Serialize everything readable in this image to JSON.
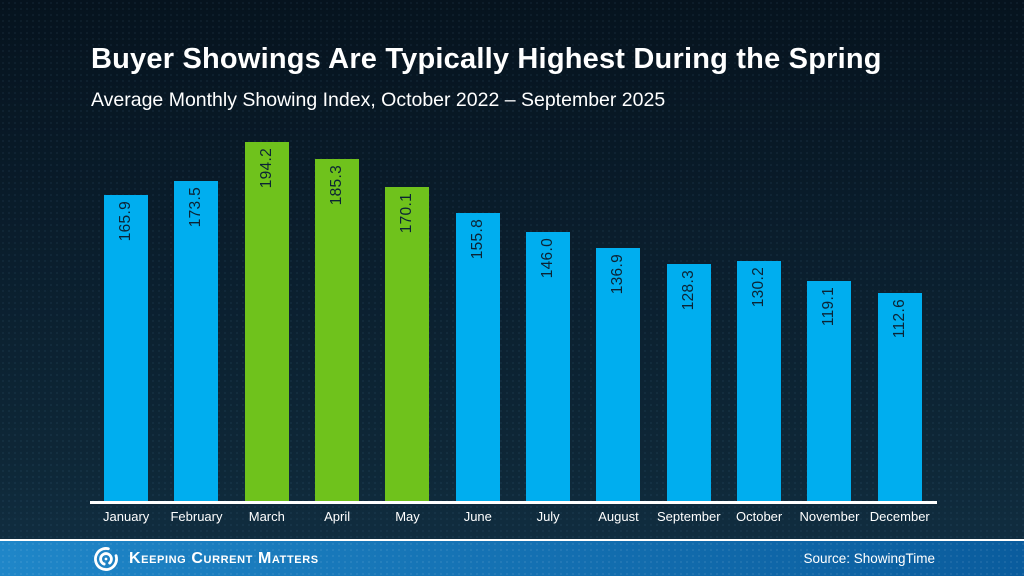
{
  "chart_data": {
    "type": "bar",
    "title": "Buyer Showings Are Typically Highest During the Spring",
    "subtitle": "Average Monthly Showing Index, October 2022 – September 2025",
    "categories": [
      "January",
      "February",
      "March",
      "April",
      "May",
      "June",
      "July",
      "August",
      "September",
      "October",
      "November",
      "December"
    ],
    "values": [
      165.9,
      173.5,
      194.2,
      185.3,
      170.1,
      155.8,
      146.0,
      136.9,
      128.3,
      130.2,
      119.1,
      112.6
    ],
    "value_label_decimals": 1,
    "highlight_categories": [
      "March",
      "April",
      "May"
    ],
    "bar_color": "#00AEEF",
    "highlight_color": "#6FC21C",
    "value_label_color": "#0C2435",
    "axis_line_color": "#FFFFFF",
    "ylim": [
      0,
      196
    ],
    "gridlines": false,
    "legend": "none",
    "value_labels_position": "inside-top-rotated-90"
  },
  "footer": {
    "brand": "Keeping Current Matters",
    "source": "Source: ShowingTime",
    "logo_icon": "kcm-swirl-icon",
    "bar_gradient_left": "#1F86C8",
    "bar_gradient_right": "#0A5C9D"
  },
  "colors": {
    "background_top": "#06131E",
    "background_bottom": "#113044",
    "text": "#FFFFFF"
  }
}
